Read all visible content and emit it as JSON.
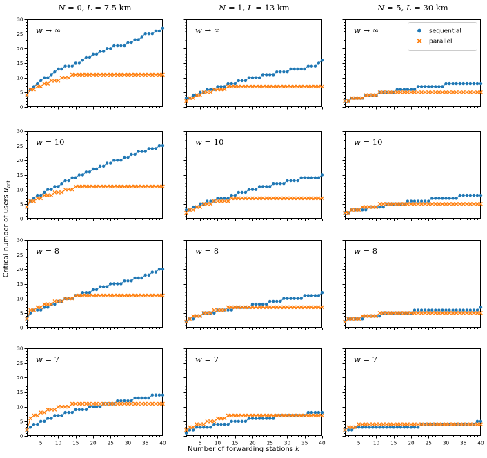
{
  "figure_type": "matplotlib-scatter-grid",
  "chart_data": {
    "type": "scatter",
    "grid": {
      "rows": 4,
      "cols": 3
    },
    "x_label": {
      "text": "Number of forwarding stations k",
      "sub": ""
    },
    "y_label": {
      "text": "Critical number of users u",
      "sub": "crit"
    },
    "x_range": [
      1,
      40
    ],
    "y_range": [
      0,
      30
    ],
    "x_ticks": [
      5,
      10,
      15,
      20,
      25,
      30,
      35,
      40
    ],
    "y_ticks": [
      0,
      5,
      10,
      15,
      20,
      25,
      30
    ],
    "grid_lines": "off",
    "legend": {
      "location": "top-right of top-right panel",
      "entries": [
        {
          "label": "sequential",
          "marker": "circle",
          "color": "#1f77b4"
        },
        {
          "label": "parallel",
          "marker": "x",
          "color": "#ff7f0e"
        }
      ]
    },
    "columns": [
      {
        "title": "N = 0,  L = 7.5 km"
      },
      {
        "title": "N = 1,  L = 13 km"
      },
      {
        "title": "N = 5,  L = 30 km"
      }
    ],
    "rows": [
      {
        "annotation": "w → ∞"
      },
      {
        "annotation": "w = 10"
      },
      {
        "annotation": "w = 8"
      },
      {
        "annotation": "w = 7"
      }
    ],
    "k_values_note": "k = 1..40, one point per integer k",
    "panels": [
      {
        "row": 0,
        "col": 0,
        "sequential": [
          4,
          6,
          7,
          8,
          9,
          10,
          10,
          11,
          12,
          13,
          13,
          14,
          14,
          14,
          15,
          15,
          16,
          17,
          17,
          18,
          18,
          19,
          19,
          20,
          20,
          21,
          21,
          21,
          21,
          22,
          22,
          23,
          23,
          24,
          25,
          25,
          25,
          26,
          26,
          27
        ],
        "parallel": [
          4,
          6,
          6,
          7,
          7,
          8,
          8,
          9,
          9,
          9,
          10,
          10,
          10,
          11,
          11,
          11,
          11,
          11,
          11,
          11,
          11,
          11,
          11,
          11,
          11,
          11,
          11,
          11,
          11,
          11,
          11,
          11,
          11,
          11,
          11,
          11,
          11,
          11,
          11,
          11
        ]
      },
      {
        "row": 0,
        "col": 1,
        "sequential": [
          3,
          3,
          4,
          4,
          5,
          5,
          6,
          6,
          6,
          7,
          7,
          7,
          8,
          8,
          8,
          9,
          9,
          9,
          10,
          10,
          10,
          10,
          11,
          11,
          11,
          11,
          12,
          12,
          12,
          12,
          13,
          13,
          13,
          13,
          13,
          14,
          14,
          14,
          15,
          16
        ],
        "parallel": [
          2,
          3,
          3,
          4,
          4,
          5,
          5,
          5,
          6,
          6,
          6,
          6,
          7,
          7,
          7,
          7,
          7,
          7,
          7,
          7,
          7,
          7,
          7,
          7,
          7,
          7,
          7,
          7,
          7,
          7,
          7,
          7,
          7,
          7,
          7,
          7,
          7,
          7,
          7,
          7
        ]
      },
      {
        "row": 0,
        "col": 2,
        "sequential": [
          2,
          2,
          3,
          3,
          3,
          3,
          4,
          4,
          4,
          4,
          5,
          5,
          5,
          5,
          5,
          6,
          6,
          6,
          6,
          6,
          6,
          7,
          7,
          7,
          7,
          7,
          7,
          7,
          7,
          8,
          8,
          8,
          8,
          8,
          8,
          8,
          8,
          8,
          8,
          8
        ],
        "parallel": [
          2,
          2,
          3,
          3,
          3,
          3,
          4,
          4,
          4,
          4,
          5,
          5,
          5,
          5,
          5,
          5,
          5,
          5,
          5,
          5,
          5,
          5,
          5,
          5,
          5,
          5,
          5,
          5,
          5,
          5,
          5,
          5,
          5,
          5,
          5,
          5,
          5,
          5,
          5,
          5
        ]
      },
      {
        "row": 1,
        "col": 0,
        "sequential": [
          4,
          6,
          7,
          8,
          8,
          9,
          10,
          10,
          11,
          11,
          12,
          13,
          13,
          14,
          14,
          15,
          15,
          16,
          16,
          17,
          17,
          18,
          18,
          19,
          19,
          20,
          20,
          20,
          21,
          21,
          22,
          22,
          23,
          23,
          23,
          24,
          24,
          24,
          25,
          25
        ],
        "parallel": [
          4,
          6,
          6,
          7,
          7,
          8,
          8,
          8,
          9,
          9,
          9,
          10,
          10,
          10,
          11,
          11,
          11,
          11,
          11,
          11,
          11,
          11,
          11,
          11,
          11,
          11,
          11,
          11,
          11,
          11,
          11,
          11,
          11,
          11,
          11,
          11,
          11,
          11,
          11,
          11
        ]
      },
      {
        "row": 1,
        "col": 1,
        "sequential": [
          3,
          3,
          4,
          4,
          5,
          5,
          6,
          6,
          6,
          7,
          7,
          7,
          7,
          8,
          8,
          9,
          9,
          9,
          10,
          10,
          10,
          11,
          11,
          11,
          11,
          12,
          12,
          12,
          12,
          13,
          13,
          13,
          13,
          14,
          14,
          14,
          14,
          14,
          14,
          15
        ],
        "parallel": [
          2,
          3,
          3,
          4,
          4,
          5,
          5,
          5,
          6,
          6,
          6,
          6,
          6,
          7,
          7,
          7,
          7,
          7,
          7,
          7,
          7,
          7,
          7,
          7,
          7,
          7,
          7,
          7,
          7,
          7,
          7,
          7,
          7,
          7,
          7,
          7,
          7,
          7,
          7,
          7
        ]
      },
      {
        "row": 1,
        "col": 2,
        "sequential": [
          2,
          2,
          3,
          3,
          3,
          3,
          3,
          4,
          4,
          4,
          4,
          4,
          5,
          5,
          5,
          5,
          5,
          5,
          6,
          6,
          6,
          6,
          6,
          6,
          6,
          7,
          7,
          7,
          7,
          7,
          7,
          7,
          7,
          8,
          8,
          8,
          8,
          8,
          8,
          8
        ],
        "parallel": [
          2,
          2,
          3,
          3,
          3,
          4,
          4,
          4,
          4,
          4,
          5,
          5,
          5,
          5,
          5,
          5,
          5,
          5,
          5,
          5,
          5,
          5,
          5,
          5,
          5,
          5,
          5,
          5,
          5,
          5,
          5,
          5,
          5,
          5,
          5,
          5,
          5,
          5,
          5,
          5
        ]
      },
      {
        "row": 2,
        "col": 0,
        "sequential": [
          3,
          5,
          6,
          6,
          6,
          7,
          7,
          8,
          8,
          9,
          9,
          10,
          10,
          10,
          11,
          11,
          12,
          12,
          12,
          13,
          13,
          14,
          14,
          14,
          15,
          15,
          15,
          15,
          16,
          16,
          16,
          17,
          17,
          17,
          18,
          18,
          19,
          19,
          20,
          20
        ],
        "parallel": [
          3,
          6,
          6,
          7,
          7,
          8,
          8,
          8,
          9,
          9,
          9,
          10,
          10,
          10,
          11,
          11,
          11,
          11,
          11,
          11,
          11,
          11,
          11,
          11,
          11,
          11,
          11,
          11,
          11,
          11,
          11,
          11,
          11,
          11,
          11,
          11,
          11,
          11,
          11,
          11
        ]
      },
      {
        "row": 2,
        "col": 1,
        "sequential": [
          2,
          3,
          3,
          4,
          4,
          5,
          5,
          5,
          5,
          6,
          6,
          6,
          6,
          6,
          7,
          7,
          7,
          7,
          7,
          8,
          8,
          8,
          8,
          8,
          9,
          9,
          9,
          9,
          10,
          10,
          10,
          10,
          10,
          10,
          11,
          11,
          11,
          11,
          11,
          12
        ],
        "parallel": [
          2,
          3,
          4,
          4,
          4,
          5,
          5,
          5,
          6,
          6,
          6,
          6,
          7,
          7,
          7,
          7,
          7,
          7,
          7,
          7,
          7,
          7,
          7,
          7,
          7,
          7,
          7,
          7,
          7,
          7,
          7,
          7,
          7,
          7,
          7,
          7,
          7,
          7,
          7,
          7
        ]
      },
      {
        "row": 2,
        "col": 2,
        "sequential": [
          2,
          3,
          3,
          3,
          3,
          3,
          4,
          4,
          4,
          4,
          4,
          5,
          5,
          5,
          5,
          5,
          5,
          5,
          5,
          5,
          6,
          6,
          6,
          6,
          6,
          6,
          6,
          6,
          6,
          6,
          6,
          6,
          6,
          6,
          6,
          6,
          6,
          6,
          6,
          7
        ],
        "parallel": [
          2,
          3,
          3,
          3,
          3,
          4,
          4,
          4,
          4,
          4,
          5,
          5,
          5,
          5,
          5,
          5,
          5,
          5,
          5,
          5,
          5,
          5,
          5,
          5,
          5,
          5,
          5,
          5,
          5,
          5,
          5,
          5,
          5,
          5,
          5,
          5,
          5,
          5,
          5,
          5
        ]
      },
      {
        "row": 3,
        "col": 0,
        "sequential": [
          2,
          3,
          4,
          4,
          5,
          5,
          6,
          6,
          7,
          7,
          7,
          8,
          8,
          8,
          9,
          9,
          9,
          9,
          10,
          10,
          10,
          10,
          11,
          11,
          11,
          11,
          12,
          12,
          12,
          12,
          12,
          13,
          13,
          13,
          13,
          13,
          14,
          14,
          14,
          14
        ],
        "parallel": [
          2,
          6,
          7,
          7,
          8,
          8,
          9,
          9,
          9,
          10,
          10,
          10,
          10,
          11,
          11,
          11,
          11,
          11,
          11,
          11,
          11,
          11,
          11,
          11,
          11,
          11,
          11,
          11,
          11,
          11,
          11,
          11,
          11,
          11,
          11,
          11,
          11,
          11,
          11,
          11
        ]
      },
      {
        "row": 3,
        "col": 1,
        "sequential": [
          1,
          2,
          2,
          3,
          3,
          3,
          3,
          3,
          4,
          4,
          4,
          4,
          4,
          5,
          5,
          5,
          5,
          5,
          6,
          6,
          6,
          6,
          6,
          6,
          6,
          6,
          7,
          7,
          7,
          7,
          7,
          7,
          7,
          7,
          7,
          8,
          8,
          8,
          8,
          8
        ],
        "parallel": [
          2,
          3,
          3,
          4,
          4,
          4,
          5,
          5,
          5,
          6,
          6,
          6,
          7,
          7,
          7,
          7,
          7,
          7,
          7,
          7,
          7,
          7,
          7,
          7,
          7,
          7,
          7,
          7,
          7,
          7,
          7,
          7,
          7,
          7,
          7,
          7,
          7,
          7,
          7,
          7
        ]
      },
      {
        "row": 3,
        "col": 2,
        "sequential": [
          2,
          2,
          2,
          3,
          3,
          3,
          3,
          3,
          3,
          3,
          3,
          3,
          3,
          3,
          3,
          3,
          3,
          3,
          3,
          3,
          3,
          3,
          4,
          4,
          4,
          4,
          4,
          4,
          4,
          4,
          4,
          4,
          4,
          4,
          4,
          4,
          4,
          4,
          5,
          5
        ],
        "parallel": [
          2,
          3,
          3,
          3,
          4,
          4,
          4,
          4,
          4,
          4,
          4,
          4,
          4,
          4,
          4,
          4,
          4,
          4,
          4,
          4,
          4,
          4,
          4,
          4,
          4,
          4,
          4,
          4,
          4,
          4,
          4,
          4,
          4,
          4,
          4,
          4,
          4,
          4,
          4,
          4
        ]
      }
    ],
    "colors": {
      "sequential": "#1f77b4",
      "parallel": "#ff7f0e",
      "axes": "#000000",
      "legend_border": "#cccccc"
    }
  }
}
